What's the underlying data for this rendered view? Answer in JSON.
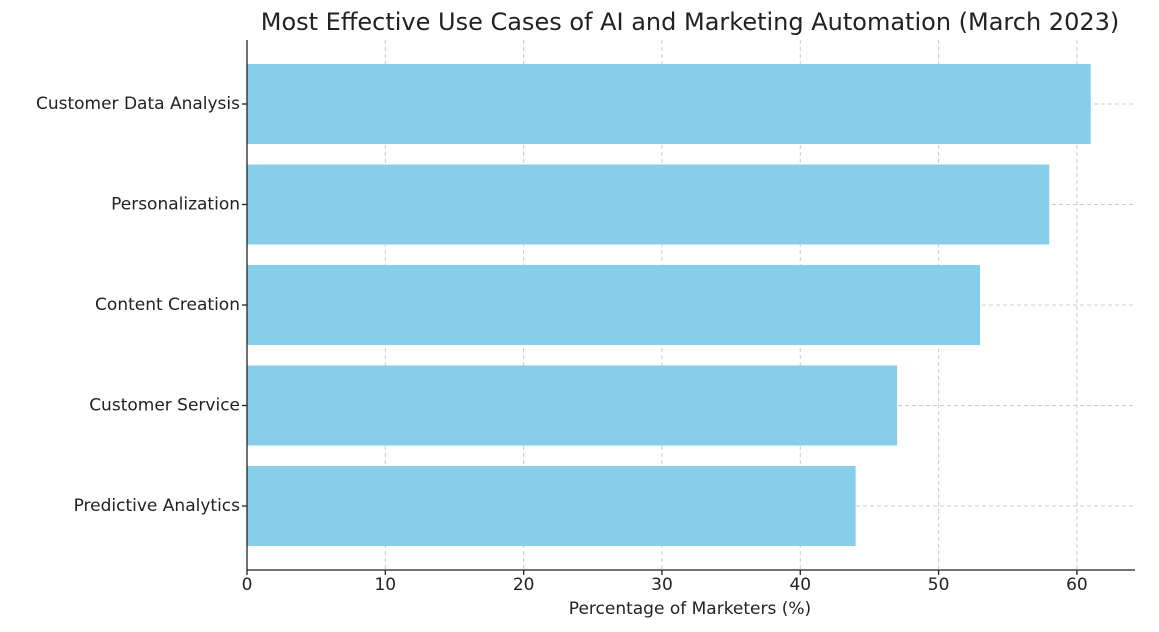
{
  "chart_data": {
    "type": "barh",
    "title": "Most Effective Use Cases of AI and Marketing Automation (March 2023)",
    "xlabel": "Percentage of Marketers (%)",
    "categories": [
      "Customer Data Analysis",
      "Personalization",
      "Content Creation",
      "Customer Service",
      "Predictive Analytics"
    ],
    "values": [
      61,
      58,
      53,
      47,
      44
    ],
    "color": "#87ceeb",
    "xlim": [
      0,
      64.2
    ],
    "xticks": [
      0,
      10,
      20,
      30,
      40,
      50,
      60
    ],
    "grid": true
  }
}
